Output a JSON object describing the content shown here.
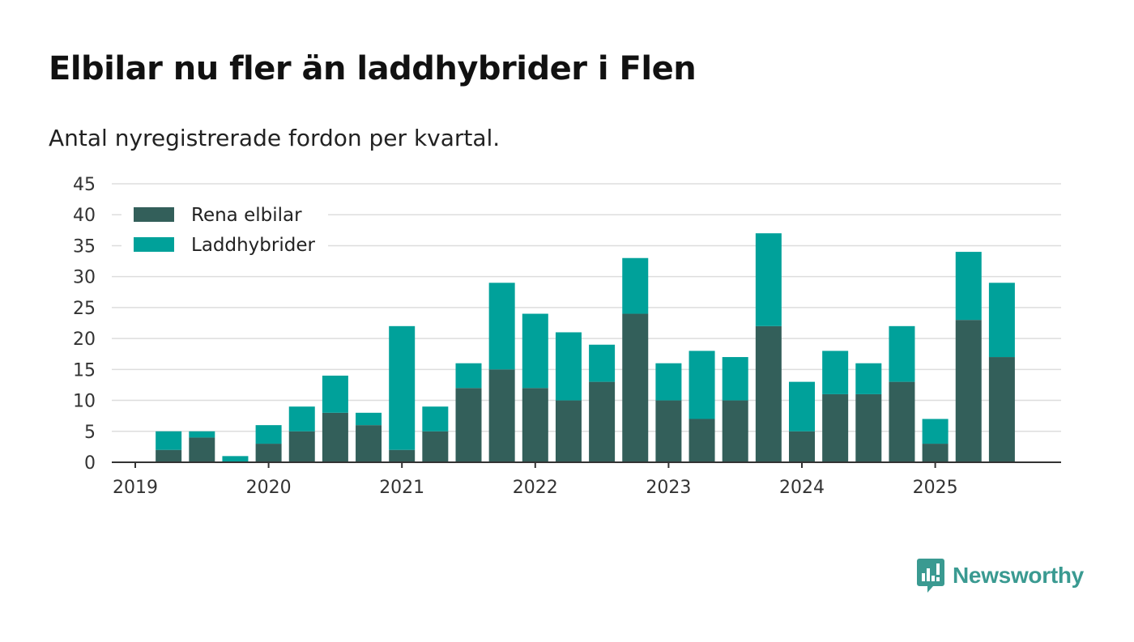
{
  "header": {
    "title": "Elbilar nu fler än laddhybrider i Flen",
    "subtitle": "Antal nyregistrerade fordon per kvartal."
  },
  "brand": {
    "name": "Newsworthy",
    "icon": "newsworthy-logo-icon",
    "color": "#3a9a91"
  },
  "colors": {
    "elbilar": "#335f5a",
    "laddhybrider": "#00a19a",
    "grid": "#dddddd",
    "axis": "#333333"
  },
  "chart_data": {
    "type": "bar",
    "stacked": true,
    "title": "Elbilar nu fler än laddhybrider i Flen",
    "subtitle": "Antal nyregistrerade fordon per kvartal.",
    "xlabel": "",
    "ylabel": "",
    "ylim": [
      0,
      45
    ],
    "yticks": [
      0,
      5,
      10,
      15,
      20,
      25,
      30,
      35,
      40,
      45
    ],
    "xtick_labels": [
      "2019",
      "2020",
      "2021",
      "2022",
      "2023",
      "2024",
      "2025"
    ],
    "grid": true,
    "legend_position": "top-left",
    "categories": [
      "2019 Q1",
      "2019 Q2",
      "2019 Q3",
      "2019 Q4",
      "2020 Q1",
      "2020 Q2",
      "2020 Q3",
      "2020 Q4",
      "2021 Q1",
      "2021 Q2",
      "2021 Q3",
      "2021 Q4",
      "2022 Q1",
      "2022 Q2",
      "2022 Q3",
      "2022 Q4",
      "2023 Q1",
      "2023 Q2",
      "2023 Q3",
      "2023 Q4",
      "2024 Q1",
      "2024 Q2",
      "2024 Q3",
      "2024 Q4",
      "2025 Q1",
      "2025 Q2",
      "2025 Q3"
    ],
    "series": [
      {
        "name": "Rena elbilar",
        "values": [
          0,
          2,
          4,
          0,
          3,
          5,
          8,
          6,
          2,
          5,
          12,
          15,
          12,
          10,
          13,
          24,
          10,
          7,
          10,
          22,
          5,
          11,
          11,
          13,
          3,
          23,
          17
        ]
      },
      {
        "name": "Laddhybrider",
        "values": [
          0,
          3,
          1,
          1,
          3,
          4,
          6,
          2,
          20,
          4,
          4,
          14,
          12,
          11,
          6,
          9,
          6,
          11,
          7,
          15,
          8,
          7,
          5,
          9,
          4,
          11,
          12
        ]
      }
    ]
  }
}
